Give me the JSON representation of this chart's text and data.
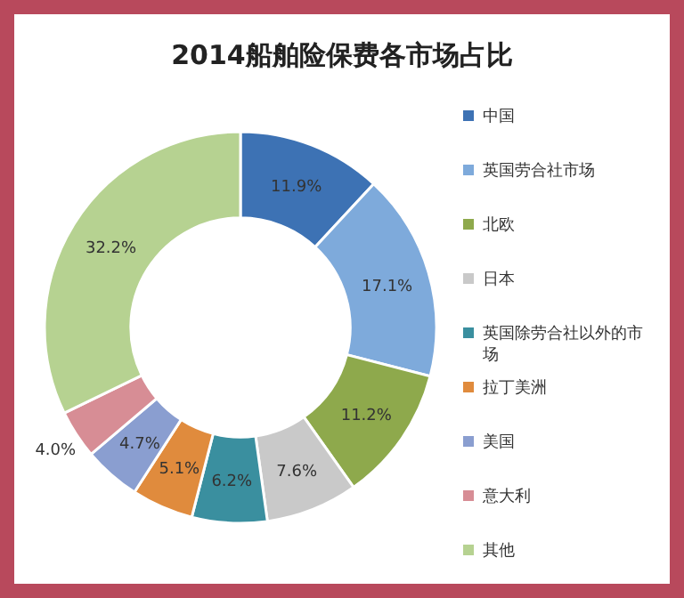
{
  "chart_data": {
    "type": "donut",
    "title": "2014船舶险保费各市场占比",
    "categories": [
      "中国",
      "英国劳合社市场",
      "北欧",
      "日本",
      "英国除劳合社以外的市场",
      "拉丁美洲",
      "美国",
      "意大利",
      "其他"
    ],
    "values": [
      11.9,
      17.1,
      11.2,
      7.6,
      6.2,
      5.1,
      4.7,
      4.0,
      32.2
    ],
    "colors": [
      "#3d72b4",
      "#7eaadb",
      "#8ea94c",
      "#c9c9c9",
      "#3a8f9f",
      "#e08b3d",
      "#8a9ed0",
      "#d78d95",
      "#b6d291"
    ],
    "value_labels": [
      "11.9%",
      "17.1%",
      "11.2%",
      "7.6%",
      "6.2%",
      "5.1%",
      "4.7%",
      "4.0%",
      "32.2%"
    ],
    "legend": "right"
  }
}
